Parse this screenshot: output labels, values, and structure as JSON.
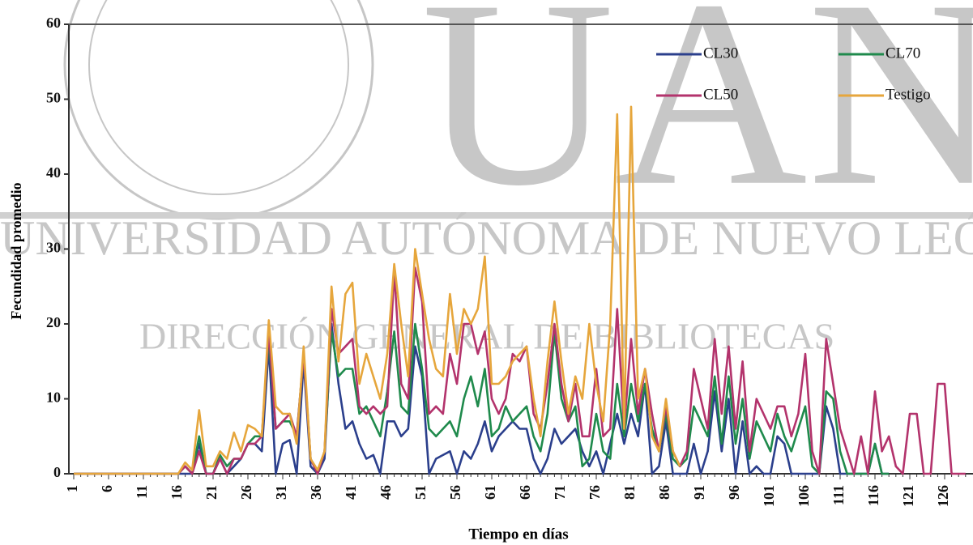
{
  "chart_data": {
    "type": "line",
    "y_label": "Fecundidad promedio",
    "x_label": "Tiempo en días",
    "watermark": {
      "logo": "UANL",
      "line1": "UNIVERSIDAD AUTÓNOMA DE NUEVO LEÓ",
      "line2": "DIRECCIÓN GENERAL DE BIBLIOTECAS"
    },
    "categories": [
      "1",
      null,
      null,
      null,
      null,
      "6",
      null,
      null,
      null,
      null,
      "11",
      null,
      null,
      null,
      null,
      "16",
      null,
      null,
      null,
      null,
      "21",
      null,
      null,
      null,
      null,
      "26",
      null,
      null,
      null,
      null,
      "31",
      null,
      null,
      null,
      null,
      "36",
      null,
      null,
      null,
      null,
      "41",
      null,
      null,
      null,
      null,
      "46",
      null,
      null,
      null,
      null,
      "51",
      null,
      null,
      null,
      null,
      "56",
      null,
      null,
      null,
      null,
      "61",
      null,
      null,
      null,
      null,
      "66",
      null,
      null,
      null,
      null,
      "71",
      null,
      null,
      null,
      null,
      "76",
      null,
      null,
      null,
      null,
      "81",
      null,
      null,
      null,
      null,
      "86",
      null,
      null,
      null,
      null,
      "91",
      null,
      null,
      null,
      null,
      "96",
      null,
      null,
      null,
      null,
      "101",
      null,
      null,
      null,
      null,
      "106",
      null,
      null,
      null,
      null,
      "111",
      null,
      null,
      null,
      null,
      "116",
      null,
      null,
      null,
      null,
      "121",
      null,
      null,
      null,
      null,
      "126",
      null,
      null,
      null
    ],
    "ylim": [
      0,
      60
    ],
    "yticks": [
      0,
      10,
      20,
      30,
      40,
      50,
      60
    ],
    "legend": "top-right",
    "series": [
      {
        "name": "CL30",
        "color": "#2b3f8c",
        "values": [
          0,
          0,
          0,
          0,
          0,
          0,
          0,
          0,
          0,
          0,
          0,
          0,
          0,
          0,
          0,
          0,
          0,
          0,
          4,
          0,
          0,
          2,
          0,
          1,
          2,
          4,
          4,
          3,
          17,
          0,
          4,
          4.5,
          0,
          15,
          1,
          0,
          2,
          20,
          12,
          6,
          7,
          4,
          2,
          2.5,
          0,
          7,
          7,
          5,
          6,
          17,
          13,
          0,
          2,
          2.5,
          3,
          0,
          3,
          2,
          4,
          7,
          3,
          5,
          6,
          7,
          6,
          6,
          2,
          0,
          2,
          6,
          4,
          5,
          6,
          3,
          1,
          3,
          0,
          4,
          8,
          4,
          8,
          5,
          12,
          0,
          1,
          7,
          0,
          0,
          0,
          4,
          0,
          3,
          11,
          3,
          10,
          0,
          7,
          0,
          1,
          0,
          0,
          5,
          4,
          0,
          0,
          0,
          0,
          0,
          9,
          6,
          0,
          0,
          0,
          0,
          0,
          4,
          0,
          0,
          null,
          null,
          null,
          null,
          null,
          null,
          null,
          null,
          null,
          null,
          null
        ]
      },
      {
        "name": "CL70",
        "color": "#1f8a4c",
        "values": [
          0,
          0,
          0,
          0,
          0,
          0,
          0,
          0,
          0,
          0,
          0,
          0,
          0,
          0,
          0,
          0,
          1,
          0,
          5,
          0,
          0,
          2.5,
          1,
          2,
          2,
          4,
          5,
          5,
          18,
          6,
          7,
          7,
          5,
          16,
          2,
          0,
          3,
          19,
          13,
          14,
          14,
          8,
          9,
          7,
          5,
          11,
          19,
          9,
          8,
          20,
          14,
          6,
          5,
          6,
          7,
          5,
          10,
          13,
          9,
          14,
          5,
          6,
          9,
          7,
          8,
          9,
          5,
          3,
          8,
          19,
          10,
          7,
          9,
          1,
          2,
          8,
          3,
          2,
          12,
          5,
          12,
          7,
          12,
          6,
          3,
          8,
          2,
          1,
          2,
          9,
          7,
          5,
          13,
          4,
          13,
          4,
          10,
          2,
          7,
          5,
          3,
          8,
          5,
          3,
          6,
          9,
          1,
          0,
          11,
          10,
          3,
          0,
          0,
          0,
          0,
          4,
          0,
          0,
          null,
          null,
          null,
          null,
          null,
          null,
          null,
          null,
          null,
          null,
          null
        ]
      },
      {
        "name": "CL50",
        "color": "#b3336c",
        "values": [
          0,
          0,
          0,
          0,
          0,
          0,
          0,
          0,
          0,
          0,
          0,
          0,
          0,
          0,
          0,
          0,
          1,
          0,
          3,
          0,
          0,
          2,
          0,
          2,
          2,
          4,
          4,
          5,
          19,
          6,
          7,
          8,
          5,
          16,
          2,
          0,
          3,
          22,
          16,
          17,
          18,
          9,
          8,
          9,
          8,
          9,
          27,
          12,
          10,
          27.5,
          23,
          8,
          9,
          8,
          16,
          12,
          20,
          20,
          16,
          19,
          10,
          8,
          10,
          16,
          15,
          17,
          8,
          6,
          12,
          20,
          12,
          7,
          12,
          5,
          5,
          14,
          5,
          6,
          22,
          6,
          18,
          8,
          14,
          8,
          3,
          9,
          3,
          1,
          3,
          14,
          10,
          6,
          18,
          8,
          17,
          6,
          15,
          3,
          10,
          8,
          6,
          9,
          9,
          5,
          8,
          16,
          3,
          0,
          18,
          12,
          6,
          3,
          0,
          5,
          0,
          11,
          3,
          5,
          1,
          0,
          8,
          8,
          0,
          0,
          12,
          12,
          0,
          0,
          0
        ]
      },
      {
        "name": "Testigo",
        "color": "#e6a63c",
        "values": [
          0,
          0,
          0,
          0,
          0,
          0,
          0,
          0,
          0,
          0,
          0,
          0,
          0,
          0,
          0,
          0,
          1.5,
          0.5,
          8.5,
          1,
          1,
          3,
          2,
          5.5,
          3,
          6.5,
          6,
          5,
          20.5,
          9,
          8,
          8,
          4,
          17,
          2,
          0.5,
          3,
          25,
          15,
          24,
          25.5,
          12,
          16,
          13,
          10,
          16,
          28,
          20,
          13,
          30,
          24,
          18,
          14,
          13,
          24,
          16,
          22,
          20,
          22,
          29,
          12,
          12,
          13,
          15,
          16,
          17,
          10,
          5,
          15,
          23,
          15,
          8,
          13,
          10,
          20,
          12,
          7,
          20,
          48,
          6,
          49,
          10,
          14,
          5,
          3,
          10,
          3,
          1,
          null,
          null,
          null,
          null,
          null,
          null,
          null,
          null,
          null,
          null,
          null,
          null,
          null,
          null,
          null,
          null,
          null,
          null,
          null,
          null,
          null,
          null,
          null,
          null,
          null,
          null,
          null,
          null,
          null,
          null,
          null,
          null,
          null,
          null,
          null,
          null,
          null,
          null,
          null,
          null,
          null
        ]
      }
    ]
  }
}
